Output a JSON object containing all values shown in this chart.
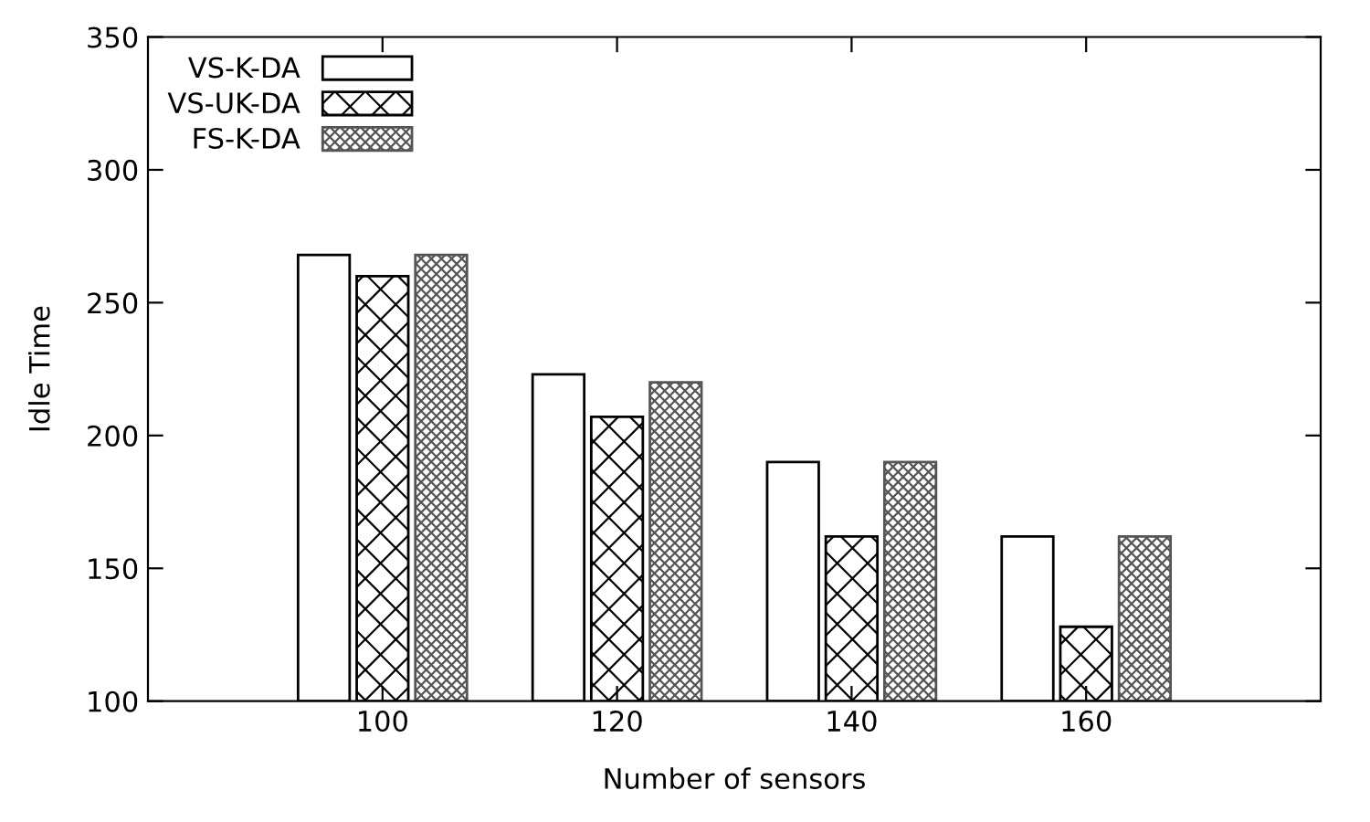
{
  "chart_data": {
    "type": "bar",
    "xlabel": "Number of sensors",
    "ylabel": "Idle Time",
    "x": [
      100,
      120,
      140,
      160
    ],
    "series": [
      {
        "name": "VS-K-DA",
        "color": "#ffffff",
        "values": [
          268,
          223,
          190,
          162
        ]
      },
      {
        "name": "VS-UK-DA",
        "color": "#000000",
        "values": [
          260,
          207,
          162,
          128
        ]
      },
      {
        "name": "FS-K-DA",
        "color": "#555555",
        "values": [
          268,
          220,
          190,
          162
        ]
      }
    ],
    "xlim": [
      80,
      180
    ],
    "xticks": [
      100,
      120,
      140,
      160
    ],
    "ylim": [
      100,
      350
    ],
    "yticks": [
      100,
      150,
      200,
      250,
      300,
      350
    ],
    "grid": false,
    "legend": "top left"
  }
}
